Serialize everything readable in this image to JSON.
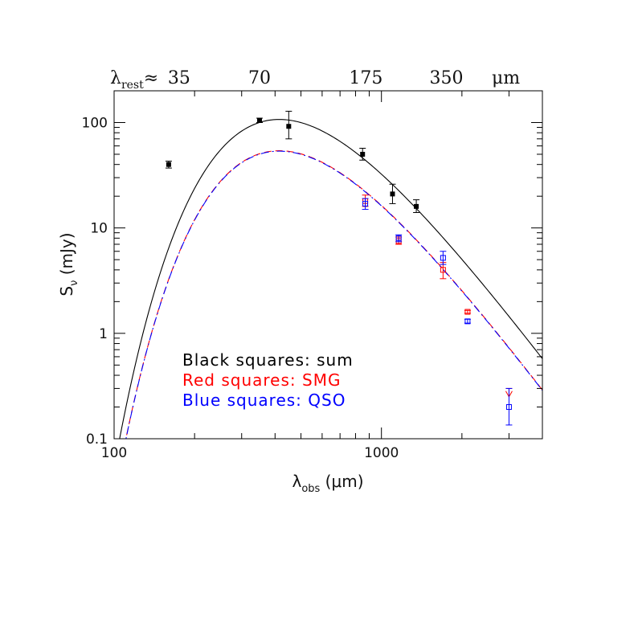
{
  "chart_data": {
    "type": "scatter",
    "xscale": "log",
    "yscale": "log",
    "xlim": [
      100,
      4000
    ],
    "ylim": [
      0.1,
      200
    ],
    "x_ticks": [
      100,
      1000
    ],
    "x_tick_labels": [
      "100",
      "1000"
    ],
    "y_ticks": [
      0.1,
      1,
      10,
      100
    ],
    "y_tick_labels": [
      "0.1",
      "1",
      "10",
      "100"
    ],
    "xlabel": {
      "symbol": "λ",
      "sub": "obs",
      "rest": " (μm)"
    },
    "ylabel": {
      "symbol": "S",
      "sub": "ν",
      "rest": " (mJy)"
    },
    "top_axis": {
      "prefix": {
        "symbol": "λ",
        "sub": "rest",
        "rest": "≈"
      },
      "ticks": [
        {
          "label": "35",
          "x_obs": 175
        },
        {
          "label": "70",
          "x_obs": 350
        },
        {
          "label": "175",
          "x_obs": 875
        },
        {
          "label": "350",
          "x_obs": 1750
        }
      ],
      "unit": "μm"
    },
    "legend": [
      {
        "text": "Black squares: sum",
        "color": "#000000"
      },
      {
        "text": "Red squares: SMG",
        "color": "#ff0000"
      },
      {
        "text": "Blue squares: QSO",
        "color": "#0000ff"
      }
    ],
    "series": [
      {
        "name": "sum",
        "color": "#000000",
        "marker": "filled-square",
        "points": [
          {
            "x": 160,
            "y": 40,
            "lo": 37,
            "hi": 43
          },
          {
            "x": 350,
            "y": 105,
            "lo": 100,
            "hi": 110
          },
          {
            "x": 450,
            "y": 92,
            "lo": 70,
            "hi": 128
          },
          {
            "x": 850,
            "y": 50,
            "lo": 44,
            "hi": 57
          },
          {
            "x": 1100,
            "y": 21,
            "lo": 17,
            "hi": 26
          },
          {
            "x": 1350,
            "y": 16,
            "lo": 14,
            "hi": 18.5
          }
        ]
      },
      {
        "name": "SMG",
        "color": "#ff0000",
        "marker": "open-square",
        "points": [
          {
            "x": 870,
            "y": 18,
            "lo": 16,
            "hi": 20.5
          },
          {
            "x": 1160,
            "y": 7.5,
            "lo": 7,
            "hi": 8.2
          },
          {
            "x": 1700,
            "y": 4,
            "lo": 3.3,
            "hi": 4.7
          },
          {
            "x": 2100,
            "y": 1.6,
            "lo": 1.55,
            "hi": 1.65
          },
          {
            "x": 3000,
            "y": 0.25,
            "upper_limit": true,
            "hi": 0.3
          }
        ]
      },
      {
        "name": "QSO",
        "color": "#0000ff",
        "marker": "open-square",
        "points": [
          {
            "x": 870,
            "y": 17,
            "lo": 15,
            "hi": 19
          },
          {
            "x": 1160,
            "y": 8,
            "lo": 7.4,
            "hi": 8.6
          },
          {
            "x": 1700,
            "y": 5.2,
            "lo": 4.5,
            "hi": 6
          },
          {
            "x": 2100,
            "y": 1.3,
            "lo": 1.25,
            "hi": 1.36
          },
          {
            "x": 3000,
            "y": 0.2,
            "lo": 0.135,
            "hi": 0.3
          }
        ]
      }
    ],
    "curves": [
      {
        "name": "sum model",
        "color": "#000000",
        "style": "solid",
        "peak_x": 415,
        "peak_y": 107,
        "beta": 1.5
      },
      {
        "name": "SMG model",
        "color": "#ff0000",
        "style": "dashed",
        "peak_x": 415,
        "peak_y": 54,
        "beta": 1.5
      },
      {
        "name": "QSO model",
        "color": "#0000ff",
        "style": "dashdot",
        "peak_x": 415,
        "peak_y": 53.5,
        "beta": 1.5
      }
    ]
  }
}
